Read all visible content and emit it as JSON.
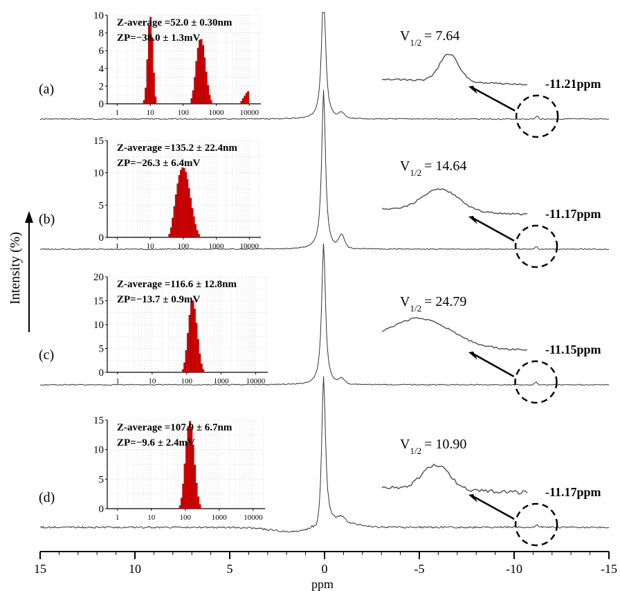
{
  "chart_data": {
    "type": "line",
    "xlabel": "ppm",
    "ylabel": "Intensity  (%)",
    "x_axis": {
      "range": [
        15,
        -15
      ],
      "ticks": [
        15,
        10,
        5,
        0,
        -5,
        -10,
        -15
      ],
      "tick_labels": [
        "15",
        "10",
        "5",
        "0",
        "-5",
        "-10",
        "-15"
      ]
    },
    "spectra": [
      {
        "label": "(a)",
        "peak_label": "-11.21ppm",
        "v_half": "V1/2 = 7.64",
        "peak_ppm": -11.21,
        "v_half_value": 7.64
      },
      {
        "label": "(b)",
        "peak_label": "-11.17ppm",
        "v_half": "V1/2 = 14.64",
        "peak_ppm": -11.17,
        "v_half_value": 14.64
      },
      {
        "label": "(c)",
        "peak_label": "-11.15ppm",
        "v_half": "V1/2 = 24.79",
        "peak_ppm": -11.15,
        "v_half_value": 24.79
      },
      {
        "label": "(d)",
        "peak_label": "-11.17ppm",
        "v_half": "V1/2 = 10.90",
        "peak_ppm": -11.17,
        "v_half_value": 10.9
      }
    ],
    "insets": [
      {
        "type": "bar",
        "x_scale": "log",
        "x_tick_labels": [
          "1",
          "10",
          "100",
          "1000",
          "10000"
        ],
        "ylim": [
          0,
          10
        ],
        "y_tick_labels": [
          "0",
          "2",
          "4",
          "6",
          "8",
          "10"
        ],
        "annotation_line1": "Z-average =52.0 ± 0.30nm",
        "annotation_line2": "ZP=−38.0 ± 1.3mV",
        "bars": [
          {
            "x": 6.5,
            "y": 0.4
          },
          {
            "x": 7.3,
            "y": 1.8
          },
          {
            "x": 8.2,
            "y": 5.0
          },
          {
            "x": 9.2,
            "y": 8.8
          },
          {
            "x": 10.3,
            "y": 9.8
          },
          {
            "x": 11.5,
            "y": 7.5
          },
          {
            "x": 12.9,
            "y": 3.5
          },
          {
            "x": 14.5,
            "y": 0.8
          },
          {
            "x": 180,
            "y": 0.6
          },
          {
            "x": 200,
            "y": 1.5
          },
          {
            "x": 225,
            "y": 3.0
          },
          {
            "x": 250,
            "y": 4.8
          },
          {
            "x": 280,
            "y": 6.3
          },
          {
            "x": 315,
            "y": 7.2
          },
          {
            "x": 355,
            "y": 7.3
          },
          {
            "x": 400,
            "y": 6.6
          },
          {
            "x": 445,
            "y": 5.2
          },
          {
            "x": 500,
            "y": 3.6
          },
          {
            "x": 560,
            "y": 2.1
          },
          {
            "x": 630,
            "y": 1.0
          },
          {
            "x": 700,
            "y": 0.4
          },
          {
            "x": 5800,
            "y": 0.3
          },
          {
            "x": 6500,
            "y": 0.6
          },
          {
            "x": 7300,
            "y": 0.9
          },
          {
            "x": 8200,
            "y": 1.2
          },
          {
            "x": 9200,
            "y": 1.4
          }
        ]
      },
      {
        "type": "bar",
        "x_scale": "log",
        "x_tick_labels": [
          "1",
          "10",
          "100",
          "1000",
          "10000"
        ],
        "ylim": [
          0,
          15
        ],
        "y_tick_labels": [
          "0",
          "5",
          "10",
          "15"
        ],
        "annotation_line1": "Z-average =135.2 ± 22.4nm",
        "annotation_line2": "ZP=−26.3 ± 6.4mV",
        "bars": [
          {
            "x": 38,
            "y": 0.5
          },
          {
            "x": 43,
            "y": 1.5
          },
          {
            "x": 48,
            "y": 3.0
          },
          {
            "x": 54,
            "y": 4.8
          },
          {
            "x": 60,
            "y": 6.6
          },
          {
            "x": 68,
            "y": 8.3
          },
          {
            "x": 76,
            "y": 9.6
          },
          {
            "x": 85,
            "y": 10.4
          },
          {
            "x": 95,
            "y": 10.8
          },
          {
            "x": 107,
            "y": 10.7
          },
          {
            "x": 120,
            "y": 10.1
          },
          {
            "x": 134,
            "y": 9.0
          },
          {
            "x": 150,
            "y": 7.6
          },
          {
            "x": 168,
            "y": 6.1
          },
          {
            "x": 189,
            "y": 4.5
          },
          {
            "x": 211,
            "y": 3.2
          },
          {
            "x": 237,
            "y": 2.0
          },
          {
            "x": 265,
            "y": 1.1
          },
          {
            "x": 297,
            "y": 0.5
          }
        ]
      },
      {
        "type": "bar",
        "x_scale": "log",
        "x_tick_labels": [
          "1",
          "10",
          "100",
          "1000",
          "10000"
        ],
        "ylim": [
          0,
          20
        ],
        "y_tick_labels": [
          "0",
          "5",
          "10",
          "15",
          "20"
        ],
        "annotation_line1": "Z-average =116.6 ± 12.8nm",
        "annotation_line2": "ZP=−13.7 ± 0.9mV",
        "bars": [
          {
            "x": 78,
            "y": 0.6
          },
          {
            "x": 87,
            "y": 2.0
          },
          {
            "x": 97,
            "y": 4.6
          },
          {
            "x": 109,
            "y": 8.2
          },
          {
            "x": 122,
            "y": 12.0
          },
          {
            "x": 137,
            "y": 14.6
          },
          {
            "x": 153,
            "y": 15.0
          },
          {
            "x": 171,
            "y": 13.3
          },
          {
            "x": 192,
            "y": 10.3
          },
          {
            "x": 215,
            "y": 6.9
          },
          {
            "x": 241,
            "y": 3.9
          },
          {
            "x": 270,
            "y": 1.8
          },
          {
            "x": 302,
            "y": 0.6
          }
        ]
      },
      {
        "type": "bar",
        "x_scale": "log",
        "x_tick_labels": [
          "1",
          "10",
          "100",
          "1000",
          "10000"
        ],
        "ylim": [
          0,
          15
        ],
        "y_tick_labels": [
          "0",
          "5",
          "10",
          "15"
        ],
        "annotation_line1": "Z-average =107.9 ± 6.7nm",
        "annotation_line2": "ZP=−9.6 ± 2.4mV",
        "bars": [
          {
            "x": 70,
            "y": 0.5
          },
          {
            "x": 78,
            "y": 1.8
          },
          {
            "x": 87,
            "y": 4.2
          },
          {
            "x": 97,
            "y": 7.6
          },
          {
            "x": 109,
            "y": 11.2
          },
          {
            "x": 122,
            "y": 13.9
          },
          {
            "x": 137,
            "y": 14.8
          },
          {
            "x": 153,
            "y": 13.6
          },
          {
            "x": 171,
            "y": 10.8
          },
          {
            "x": 192,
            "y": 7.4
          },
          {
            "x": 215,
            "y": 4.3
          },
          {
            "x": 241,
            "y": 2.0
          },
          {
            "x": 270,
            "y": 0.7
          }
        ]
      }
    ]
  }
}
